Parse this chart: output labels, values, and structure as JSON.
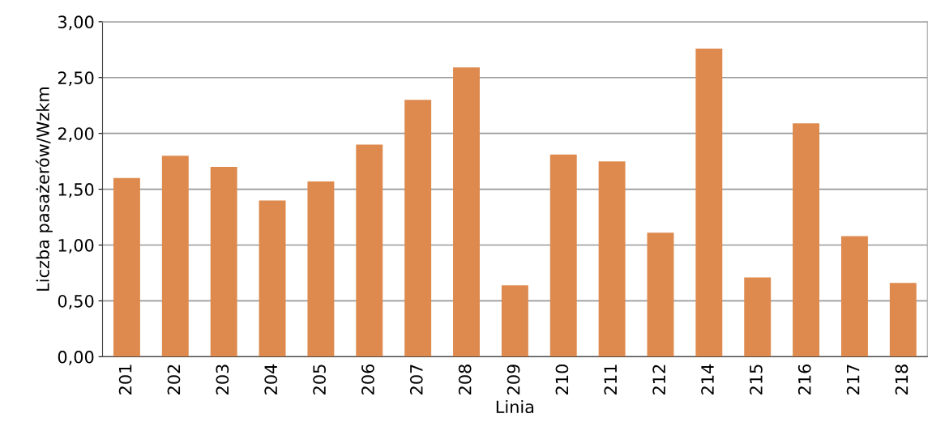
{
  "chart_data": {
    "type": "bar",
    "xlabel": "Linia",
    "ylabel": "Liczba pasażerów/Wzkm",
    "categories": [
      "201",
      "202",
      "203",
      "204",
      "205",
      "206",
      "207",
      "208",
      "209",
      "210",
      "211",
      "212",
      "214",
      "215",
      "216",
      "217",
      "218"
    ],
    "values": [
      1.6,
      1.8,
      1.7,
      1.4,
      1.57,
      1.9,
      2.3,
      2.59,
      0.64,
      1.81,
      1.75,
      1.11,
      2.76,
      0.71,
      2.09,
      1.08,
      0.66
    ],
    "color": "#de8a4e",
    "ylim": [
      0,
      3
    ],
    "yticks": [
      {
        "value": 0,
        "label": "0,00"
      },
      {
        "value": 0.5,
        "label": "0,50"
      },
      {
        "value": 1,
        "label": "1,00"
      },
      {
        "value": 1.5,
        "label": "1,50"
      },
      {
        "value": 2,
        "label": "2,00"
      },
      {
        "value": 2.5,
        "label": "2,50"
      },
      {
        "value": 3,
        "label": "3,00"
      }
    ],
    "grid": "y"
  }
}
